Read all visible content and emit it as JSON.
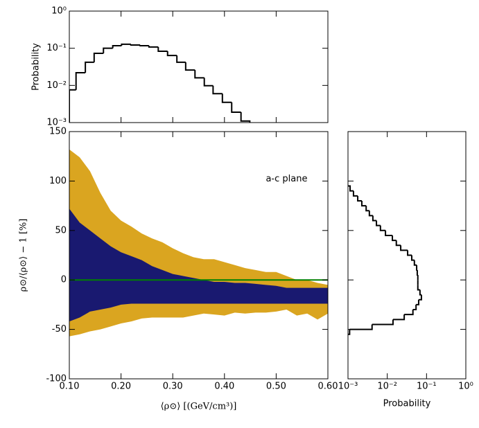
{
  "chart_data": [
    {
      "type": "histogram",
      "orientation": "vertical",
      "ylabel": "Probability",
      "log_scale": "y",
      "color": "#000000",
      "bins": [
        0.1,
        0.113,
        0.131,
        0.148,
        0.166,
        0.184,
        0.201,
        0.219,
        0.237,
        0.254,
        0.272,
        0.29,
        0.308,
        0.325,
        0.343,
        0.361,
        0.378,
        0.396,
        0.414,
        0.432,
        0.449
      ],
      "values": [
        0.0076,
        0.022,
        0.042,
        0.073,
        0.1,
        0.117,
        0.128,
        0.122,
        0.117,
        0.108,
        0.083,
        0.064,
        0.042,
        0.026,
        0.016,
        0.0098,
        0.006,
        0.0035,
        0.0019,
        0.0011
      ],
      "xlim": [
        0.1,
        0.6
      ],
      "xticks": [
        0.1,
        0.2,
        0.3,
        0.4,
        0.5,
        0.6
      ],
      "ylim": [
        0.001,
        1
      ],
      "yticks": [
        {
          "value": 1,
          "label": "10⁰"
        },
        {
          "value": 0.1,
          "label": "10⁻¹"
        },
        {
          "value": 0.01,
          "label": "10⁻²"
        },
        {
          "value": 0.001,
          "label": "10⁻³"
        }
      ]
    },
    {
      "type": "band",
      "xlabel": "⟨ρ⊙⟩ [(GeV/cm³)]",
      "ylabel": "ρ⊙/⟨ρ⊙⟩ − 1  [%]",
      "annotation": {
        "text": "a-c plane",
        "x": 0.48,
        "y": 102
      },
      "x": [
        0.1,
        0.12,
        0.14,
        0.16,
        0.18,
        0.2,
        0.22,
        0.24,
        0.26,
        0.28,
        0.3,
        0.32,
        0.34,
        0.36,
        0.38,
        0.4,
        0.42,
        0.44,
        0.46,
        0.48,
        0.5,
        0.52,
        0.54,
        0.56,
        0.58,
        0.6
      ],
      "series": [
        {
          "color": "#daa520",
          "upper": [
            132,
            124,
            110,
            88,
            70,
            60,
            54,
            47,
            42,
            38,
            32,
            27,
            23,
            21,
            21,
            18,
            15,
            12,
            10,
            8,
            8,
            4,
            0,
            0,
            -3,
            -5
          ],
          "lower": [
            -57,
            -55,
            -52,
            -50,
            -47,
            -44,
            -42,
            -39,
            -38,
            -38,
            -38,
            -38,
            -36,
            -34,
            -35,
            -36,
            -33,
            -34,
            -33,
            -33,
            -32,
            -30,
            -36,
            -34,
            -40,
            -34
          ]
        },
        {
          "color": "#191970",
          "upper": [
            72,
            58,
            50,
            42,
            34,
            28,
            24,
            20,
            14,
            10,
            6,
            4,
            2,
            0,
            -2,
            -2,
            -3,
            -3,
            -4,
            -5,
            -6,
            -8,
            -8,
            -8,
            -8,
            -8
          ],
          "lower": [
            -42,
            -38,
            -32,
            -30,
            -28,
            -25,
            -24,
            -24,
            -24,
            -24,
            -24,
            -24,
            -24,
            -24,
            -24,
            -24,
            -24,
            -24,
            -24,
            -24,
            -24,
            -24,
            -24,
            -24,
            -24,
            -24
          ]
        }
      ],
      "reference_line": {
        "value": 0,
        "color": "#008000"
      },
      "xlim": [
        0.1,
        0.6
      ],
      "xticks": [
        {
          "value": 0.1,
          "label": "0.10"
        },
        {
          "value": 0.2,
          "label": "0.20"
        },
        {
          "value": 0.3,
          "label": "0.30"
        },
        {
          "value": 0.4,
          "label": "0.40"
        },
        {
          "value": 0.5,
          "label": "0.50"
        },
        {
          "value": 0.6,
          "label": "0.60"
        }
      ],
      "ylim": [
        -100,
        150
      ],
      "yticks": [
        150,
        100,
        50,
        0,
        -50,
        -100
      ]
    },
    {
      "type": "histogram",
      "orientation": "horizontal",
      "xlabel": "Probability",
      "log_scale": "x",
      "color": "#000000",
      "bins": [
        -55,
        -50,
        -45,
        -40,
        -35,
        -30,
        -25,
        -20,
        -15,
        -10,
        -5,
        0,
        5,
        10,
        15,
        20,
        25,
        30,
        35,
        40,
        45,
        50,
        55,
        60,
        65,
        70,
        75,
        80,
        85,
        90,
        95
      ],
      "values": [
        0.0011,
        0.0041,
        0.014,
        0.027,
        0.045,
        0.054,
        0.063,
        0.074,
        0.068,
        0.06,
        0.06,
        0.06,
        0.058,
        0.056,
        0.049,
        0.042,
        0.033,
        0.022,
        0.017,
        0.0135,
        0.009,
        0.0067,
        0.0053,
        0.0043,
        0.0035,
        0.0029,
        0.00225,
        0.00177,
        0.00138,
        0.00113
      ],
      "xlim": [
        0.001,
        1
      ],
      "xticks": [
        {
          "value": 0.001,
          "label": "10⁻³"
        },
        {
          "value": 0.01,
          "label": "10⁻²"
        },
        {
          "value": 0.1,
          "label": "10⁻¹"
        },
        {
          "value": 1,
          "label": "10⁰"
        }
      ],
      "ylim": [
        -100,
        150
      ],
      "yticks": [
        150,
        100,
        50,
        0,
        -50,
        -100
      ]
    }
  ]
}
